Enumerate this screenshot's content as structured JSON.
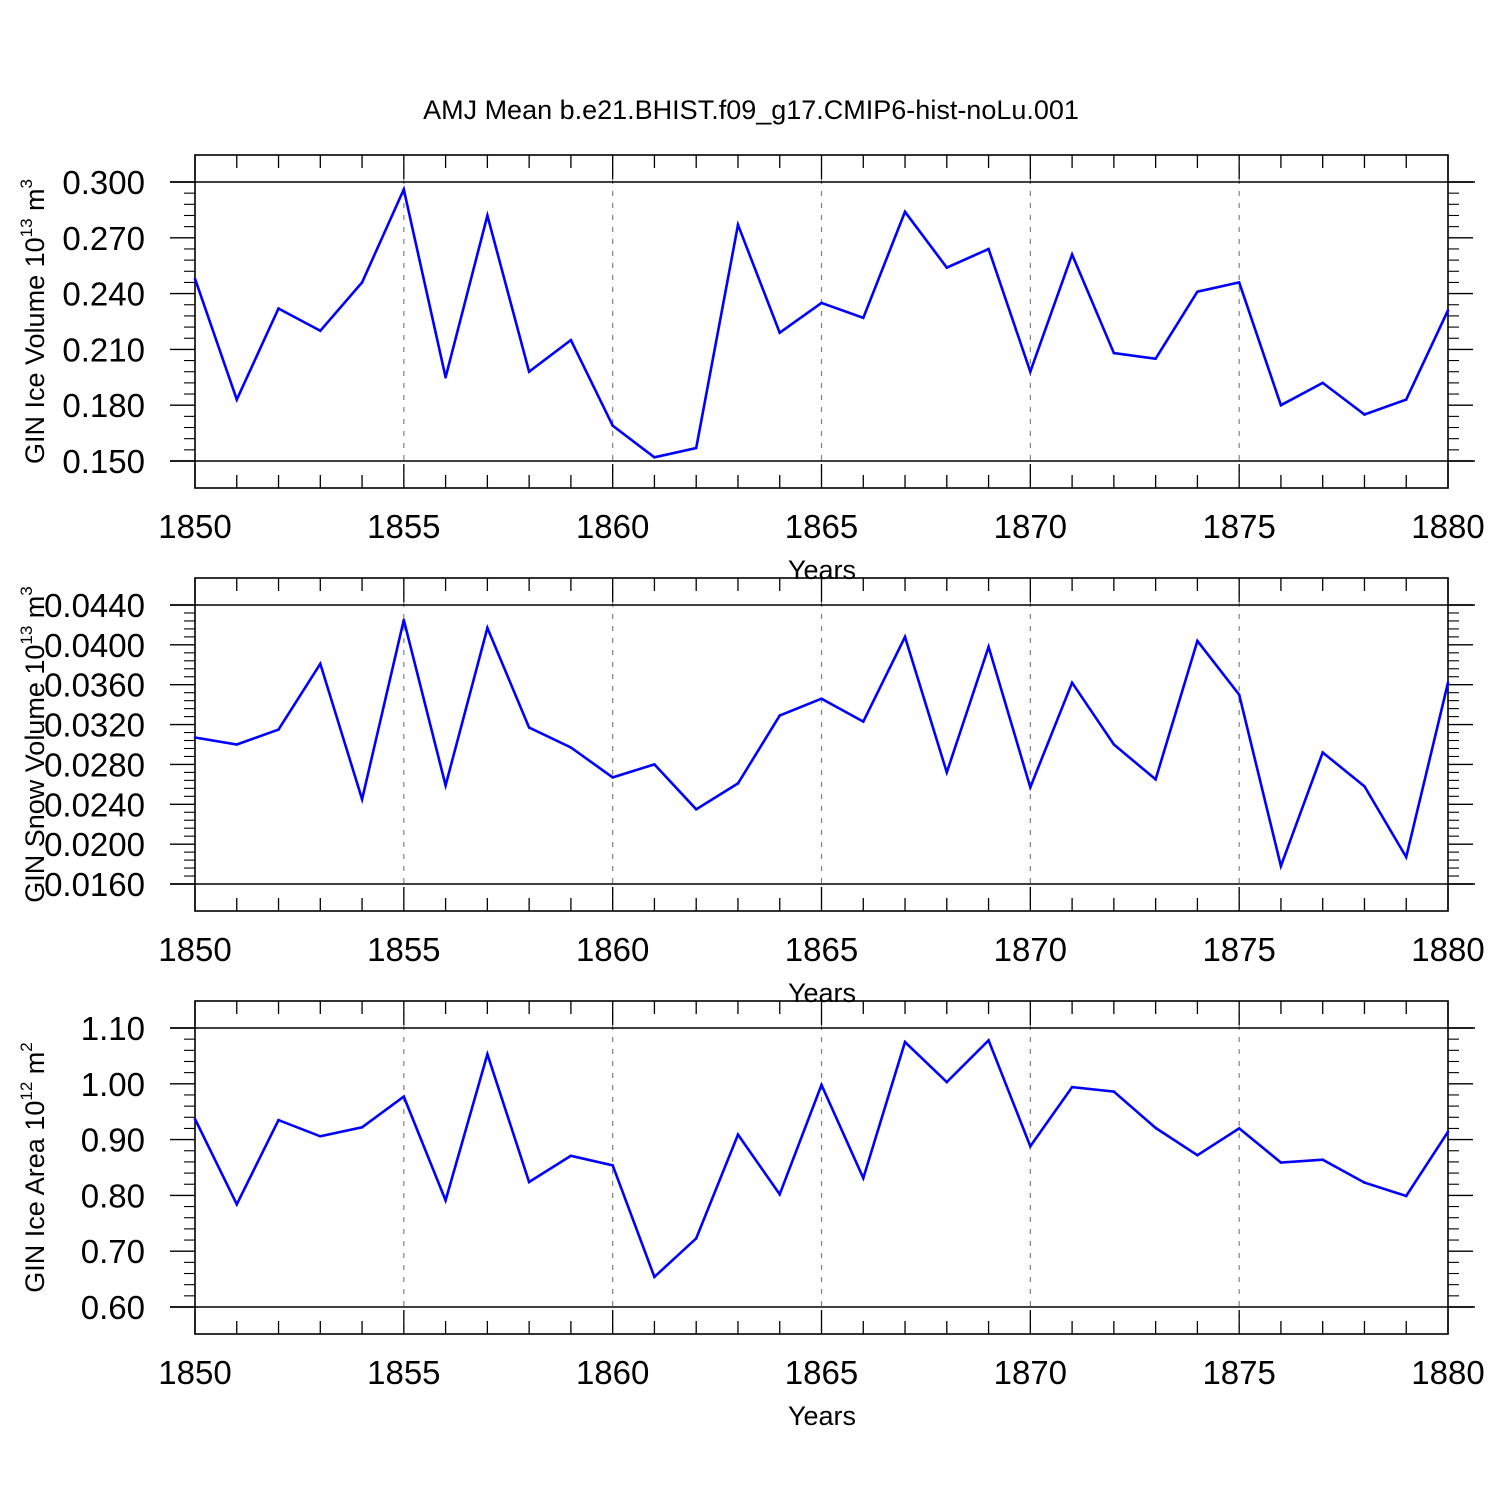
{
  "title": "AMJ Mean b.e21.BHIST.f09_g17.CMIP6-hist-noLu.001",
  "colors": {
    "line": "#0000ff",
    "axis": "#000000",
    "grid": "#808080"
  },
  "chart_data": [
    {
      "type": "line",
      "ylabel": "GIN Ice Volume 10",
      "ylabel_exp": "13",
      "ylabel_unit": "m",
      "ylabel_unit_exp": "3",
      "xlabel": "Years",
      "xlim": [
        1850,
        1880
      ],
      "ylim": [
        0.15,
        0.3
      ],
      "x_ticks": [
        "1850",
        "1855",
        "1860",
        "1865",
        "1870",
        "1875",
        "1880"
      ],
      "y_ticks": [
        "0.300",
        "0.270",
        "0.240",
        "0.210",
        "0.180",
        "0.150"
      ],
      "y_tick_values": [
        0.3,
        0.27,
        0.24,
        0.21,
        0.18,
        0.15
      ],
      "x": [
        1850,
        1851,
        1852,
        1853,
        1854,
        1855,
        1856,
        1857,
        1858,
        1859,
        1860,
        1861,
        1862,
        1863,
        1864,
        1865,
        1866,
        1867,
        1868,
        1869,
        1870,
        1871,
        1872,
        1873,
        1874,
        1875,
        1876,
        1877,
        1878,
        1879,
        1880
      ],
      "values": [
        0.248,
        0.183,
        0.232,
        0.22,
        0.246,
        0.296,
        0.195,
        0.282,
        0.198,
        0.215,
        0.169,
        0.152,
        0.157,
        0.277,
        0.219,
        0.235,
        0.227,
        0.284,
        0.254,
        0.264,
        0.198,
        0.261,
        0.208,
        0.205,
        0.241,
        0.246,
        0.18,
        0.192,
        0.175,
        0.183,
        0.231
      ]
    },
    {
      "type": "line",
      "ylabel": "GIN Snow Volume 10",
      "ylabel_exp": "13",
      "ylabel_unit": "m",
      "ylabel_unit_exp": "3",
      "xlabel": "Years",
      "xlim": [
        1850,
        1880
      ],
      "ylim": [
        0.016,
        0.044
      ],
      "x_ticks": [
        "1850",
        "1855",
        "1860",
        "1865",
        "1870",
        "1875",
        "1880"
      ],
      "y_ticks": [
        "0.0440",
        "0.0400",
        "0.0360",
        "0.0320",
        "0.0280",
        "0.0240",
        "0.0200",
        "0.0160"
      ],
      "y_tick_values": [
        0.044,
        0.04,
        0.036,
        0.032,
        0.028,
        0.024,
        0.02,
        0.016
      ],
      "x": [
        1850,
        1851,
        1852,
        1853,
        1854,
        1855,
        1856,
        1857,
        1858,
        1859,
        1860,
        1861,
        1862,
        1863,
        1864,
        1865,
        1866,
        1867,
        1868,
        1869,
        1870,
        1871,
        1872,
        1873,
        1874,
        1875,
        1876,
        1877,
        1878,
        1879,
        1880
      ],
      "values": [
        0.0307,
        0.03,
        0.0315,
        0.0381,
        0.0245,
        0.0425,
        0.0259,
        0.0417,
        0.0317,
        0.0297,
        0.0267,
        0.028,
        0.0235,
        0.0261,
        0.0329,
        0.0346,
        0.0323,
        0.0408,
        0.0272,
        0.0398,
        0.0257,
        0.0362,
        0.03,
        0.0265,
        0.0404,
        0.035,
        0.0178,
        0.0292,
        0.0258,
        0.0187,
        0.0362
      ]
    },
    {
      "type": "line",
      "ylabel": "GIN Ice Area 10",
      "ylabel_exp": "12",
      "ylabel_unit": "m",
      "ylabel_unit_exp": "2",
      "xlabel": "Years",
      "xlim": [
        1850,
        1880
      ],
      "ylim": [
        0.6,
        1.1
      ],
      "x_ticks": [
        "1850",
        "1855",
        "1860",
        "1865",
        "1870",
        "1875",
        "1880"
      ],
      "y_ticks": [
        "1.10",
        "1.00",
        "0.90",
        "0.80",
        "0.70",
        "0.60"
      ],
      "y_tick_values": [
        1.1,
        1.0,
        0.9,
        0.8,
        0.7,
        0.6
      ],
      "x": [
        1850,
        1851,
        1852,
        1853,
        1854,
        1855,
        1856,
        1857,
        1858,
        1859,
        1860,
        1861,
        1862,
        1863,
        1864,
        1865,
        1866,
        1867,
        1868,
        1869,
        1870,
        1871,
        1872,
        1873,
        1874,
        1875,
        1876,
        1877,
        1878,
        1879,
        1880
      ],
      "values": [
        0.937,
        0.784,
        0.935,
        0.906,
        0.922,
        0.977,
        0.791,
        1.053,
        0.824,
        0.871,
        0.854,
        0.654,
        0.723,
        0.909,
        0.802,
        0.998,
        0.831,
        1.075,
        1.003,
        1.078,
        0.888,
        0.994,
        0.986,
        0.921,
        0.872,
        0.92,
        0.859,
        0.864,
        0.823,
        0.799,
        0.914
      ]
    }
  ]
}
